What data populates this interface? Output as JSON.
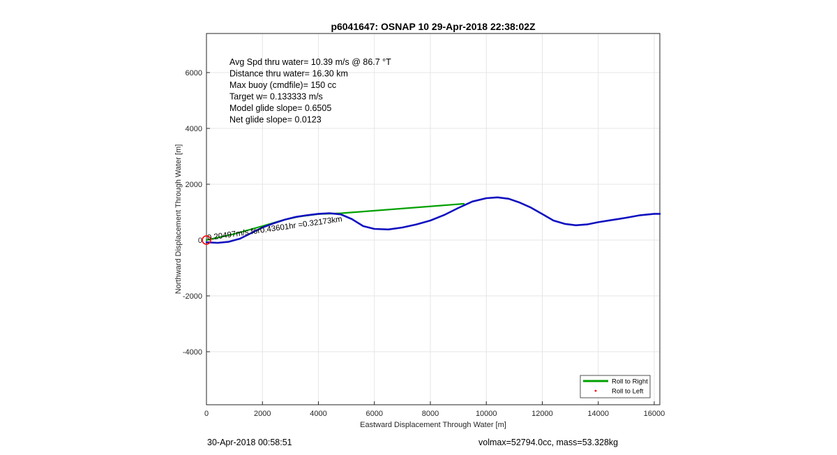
{
  "chart_data": {
    "type": "line",
    "title": "p6041647: OSNAP 10 29-Apr-2018 22:38:02Z",
    "xlabel": "Eastward Displacement Through Water [m]",
    "ylabel": "Northward Displacement Through Water [m]",
    "xlim": [
      0,
      16200
    ],
    "ylim": [
      -5900,
      7400
    ],
    "xticks": [
      0,
      2000,
      4000,
      6000,
      8000,
      10000,
      12000,
      14000,
      16000
    ],
    "yticks": [
      -4000,
      -2000,
      0,
      2000,
      4000,
      6000
    ],
    "grid": true,
    "legend_position": "bottom-right",
    "legend": [
      {
        "label": "Roll to Right",
        "color": "#00a000",
        "kind": "line"
      },
      {
        "label": "Roll to Left",
        "color": "#ff0000",
        "kind": "dot"
      }
    ],
    "stats": [
      "Avg Spd thru water= 10.39 m/s @  86.7 °T",
      "Distance thru water= 16.30 km",
      "Max buoy (cmdfile)= 150 cc",
      "Target w= 0.133333 m/s",
      "Model glide slope= 0.6505",
      "Net glide slope= 0.0123"
    ],
    "annotation": {
      "text": "0.20497m/s for0.43601hr =0.32173km",
      "x": 40,
      "y": -10,
      "rotation": -8
    },
    "start_marker": {
      "x": 0,
      "y": 0,
      "color": "#ff0000"
    },
    "series": [
      {
        "name": "Roll to Right",
        "color": "#00a000",
        "x": [
          0,
          1000,
          2000,
          2750,
          3300,
          4000,
          4800,
          9200
        ],
        "y": [
          0,
          220,
          500,
          720,
          840,
          930,
          960,
          1300
        ]
      },
      {
        "name": "Dive track",
        "color": "#1010c0",
        "x": [
          0,
          400,
          800,
          1200,
          1600,
          2000,
          2400,
          2800,
          3200,
          3600,
          4000,
          4400,
          4800,
          5200,
          5600,
          6000,
          6500,
          7000,
          7500,
          8000,
          8500,
          9000,
          9500,
          10000,
          10400,
          10800,
          11200,
          11600,
          12000,
          12400,
          12800,
          13200,
          13600,
          14000,
          14500,
          15000,
          15500,
          16000,
          16200
        ],
        "y": [
          -80,
          -100,
          -60,
          50,
          250,
          450,
          600,
          730,
          830,
          890,
          940,
          960,
          920,
          750,
          500,
          400,
          380,
          450,
          560,
          700,
          900,
          1150,
          1380,
          1500,
          1530,
          1480,
          1340,
          1160,
          930,
          700,
          580,
          530,
          560,
          640,
          720,
          800,
          890,
          940,
          940
        ]
      }
    ]
  },
  "footer": {
    "left": "30-Apr-2018 00:58:51",
    "right": "volmax=52794.0cc, mass=53.328kg"
  }
}
